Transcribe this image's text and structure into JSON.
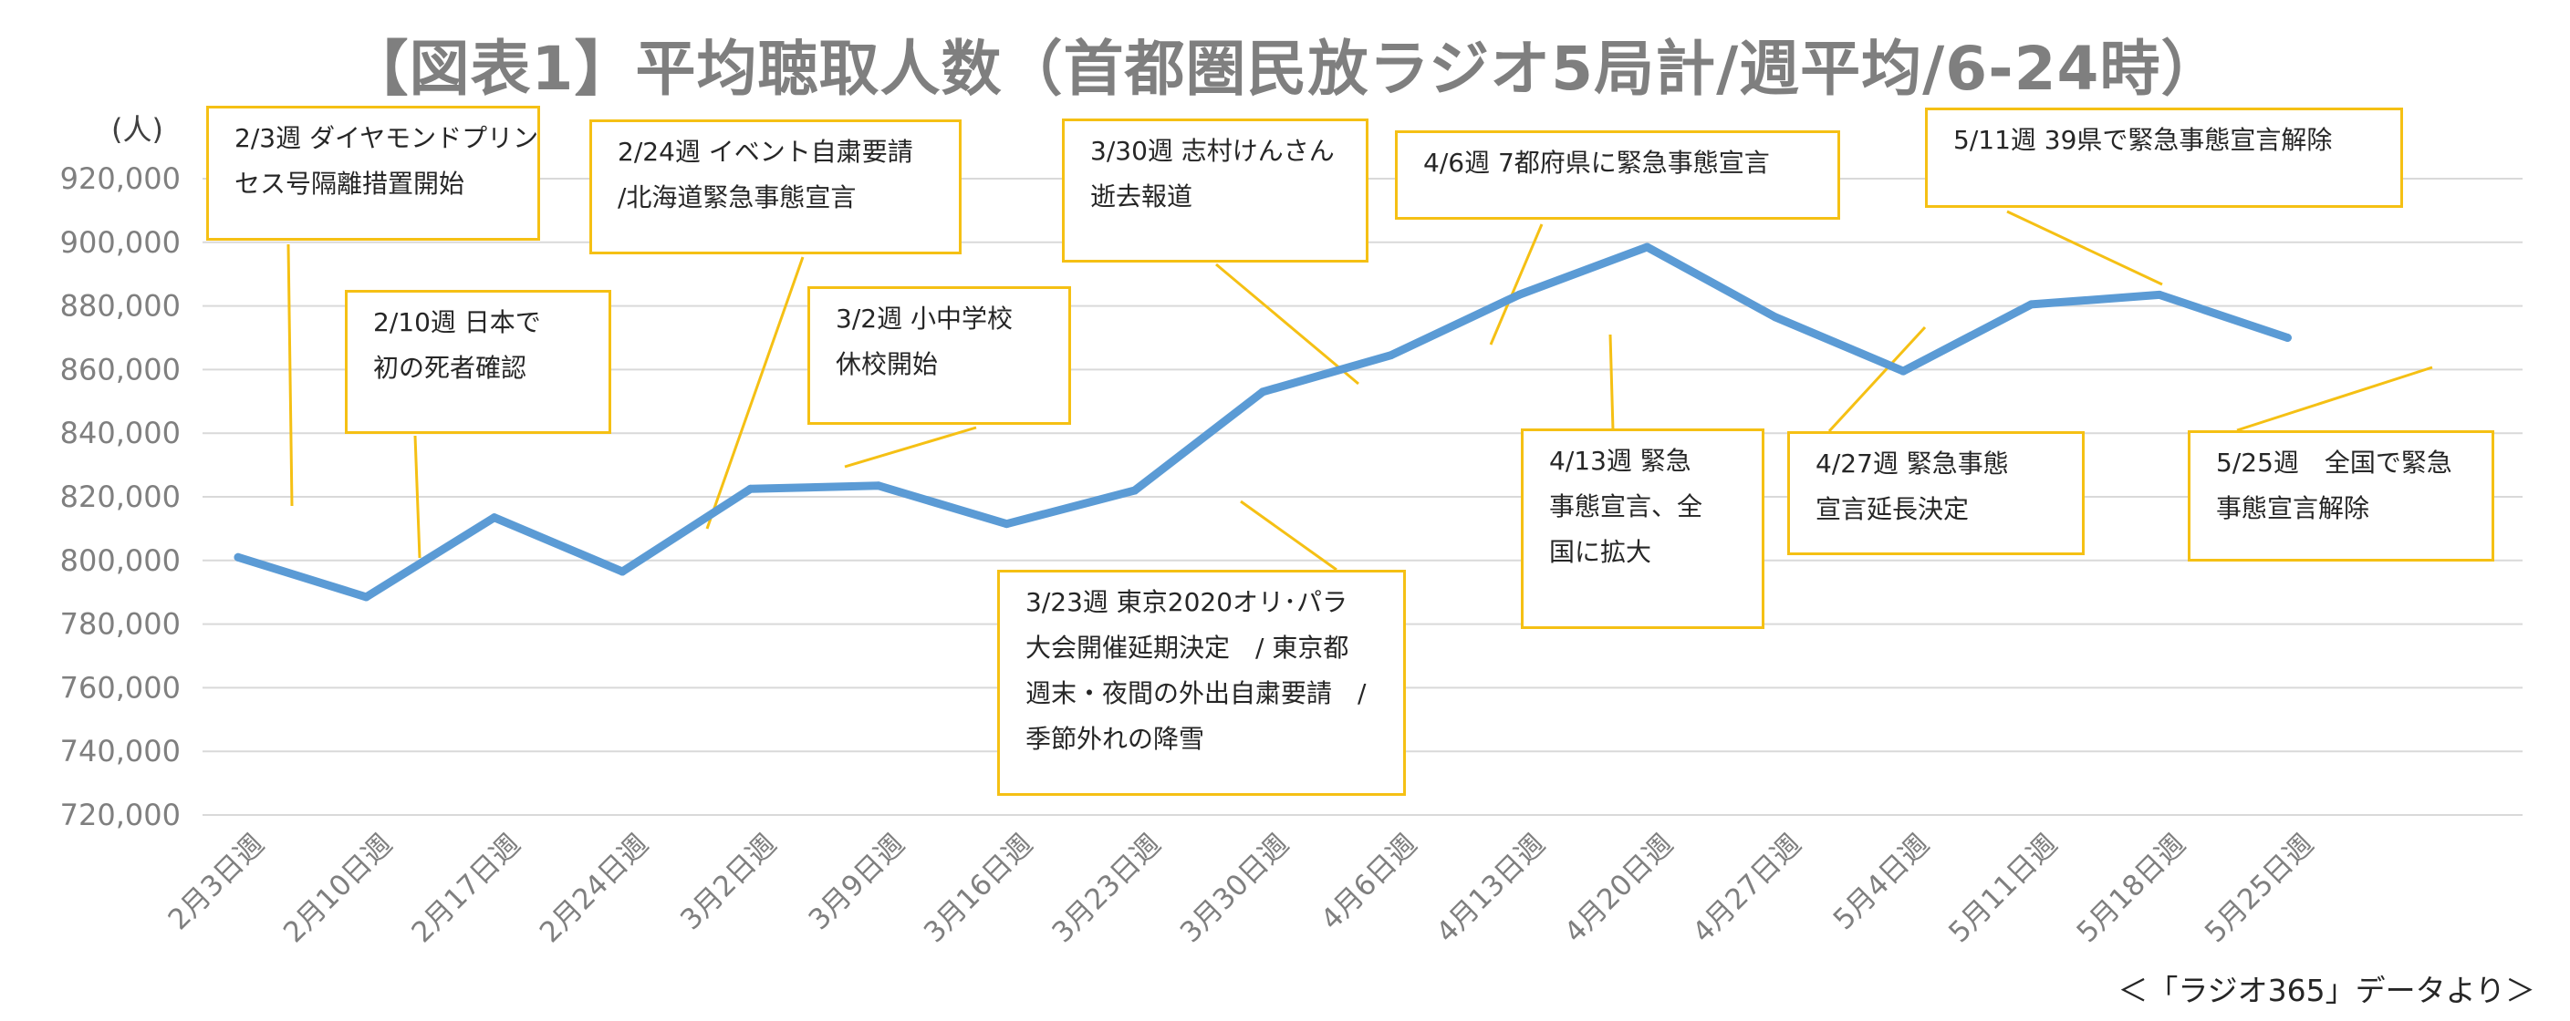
{
  "title": "【図表1】平均聴取人数（首都圏民放ラジオ5局計/週平均/6-24時）",
  "source_note": "＜「ラジオ365」データより＞",
  "colors": {
    "line": "#5b9bd5",
    "callout_border": "#f5c014",
    "grid": "#d9d9d9",
    "text_muted": "#7f7f7f"
  },
  "chart_data": {
    "type": "line",
    "title": "【図表1】平均聴取人数（首都圏民放ラジオ5局計/週平均/6-24時）",
    "unit_label": "(人)",
    "ylim": [
      720000,
      920000
    ],
    "y_ticks": [
      "720,000",
      "740,000",
      "760,000",
      "780,000",
      "800,000",
      "820,000",
      "840,000",
      "860,000",
      "880,000",
      "900,000",
      "920,000"
    ],
    "y_tick_values": [
      720000,
      740000,
      760000,
      780000,
      800000,
      820000,
      840000,
      860000,
      880000,
      900000,
      920000
    ],
    "grid": true,
    "categories": [
      "2月3日週",
      "2月10日週",
      "2月17日週",
      "2月24日週",
      "3月2日週",
      "3月9日週",
      "3月16日週",
      "3月23日週",
      "3月30日週",
      "4月6日週",
      "4月13日週",
      "4月20日週",
      "4月27日週",
      "5月4日週",
      "5月11日週",
      "5月18日週",
      "5月25日週"
    ],
    "series": [
      {
        "values": [
          801000,
          788500,
          813500,
          796500,
          822500,
          823500,
          811500,
          822000,
          853000,
          864500,
          883500,
          898500,
          876500,
          859500,
          880500,
          883500,
          870000
        ]
      }
    ],
    "annotations": [
      {
        "text": "2/3週 ダイヤモンドプリン\nセス号隔離措置開始",
        "category_index": 0
      },
      {
        "text": "2/10週 日本で\n初の死者確認",
        "category_index": 1
      },
      {
        "text": "2/24週 イベント自粛要請\n/北海道緊急事態宣言",
        "category_index": 3
      },
      {
        "text": "3/2週 小中学校\n休校開始",
        "category_index": 4
      },
      {
        "text": "3/23週 東京2020オリ･パラ\n大会開催延期決定　/ 東京都\n週末・夜間の外出自粛要請　/\n季節外れの降雪",
        "category_index": 7
      },
      {
        "text": "3/30週 志村けんさん\n逝去報道",
        "category_index": 8
      },
      {
        "text": "4/6週 7都府県に緊急事態宣言",
        "category_index": 9
      },
      {
        "text": "4/13週 緊急\n事態宣言、全\n国に拡大",
        "category_index": 10
      },
      {
        "text": "4/27週 緊急事態\n宣言延長決定",
        "category_index": 12
      },
      {
        "text": "5/11週 39県で緊急事態宣言解除",
        "category_index": 14
      },
      {
        "text": "5/25週　全国で緊急\n事態宣言解除",
        "category_index": 16
      }
    ]
  }
}
